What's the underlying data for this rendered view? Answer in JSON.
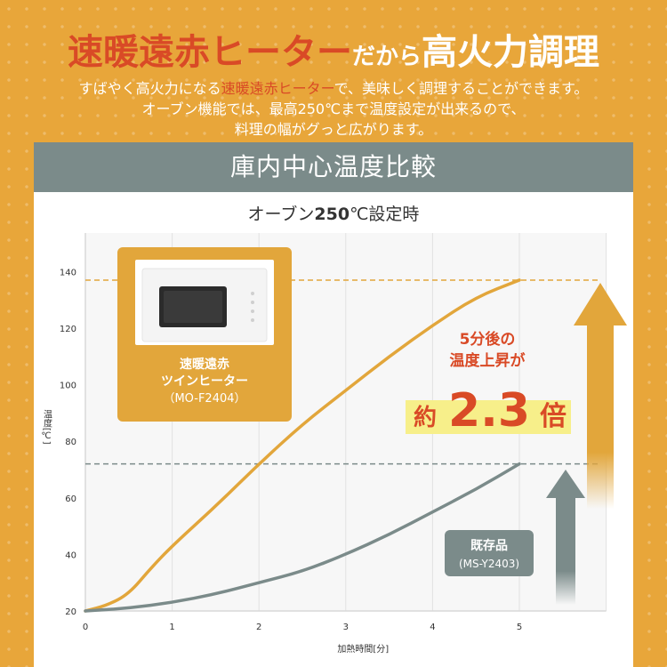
{
  "headline": {
    "red": "速暖遠赤ヒーター",
    "small": "だから",
    "big": "高火力調理"
  },
  "subtext": {
    "line1_pre": "すばやく高火力になる",
    "line1_accent": "速暖遠赤ヒーター",
    "line1_post": "で、美味しく調理することができます。",
    "line2": "オーブン機能では、最高250℃まで温度設定が出来るので、",
    "line3": "料理の幅がグっと広がります。"
  },
  "banner_title": "庫内中心温度比較",
  "chart_subtitle": {
    "pre": "オーブン",
    "num": "250",
    "post": "℃設定時"
  },
  "product_new": {
    "line1": "速暖遠赤",
    "line2": "ツインヒーター",
    "model": "（MO-F2404）"
  },
  "product_old": {
    "name": "既存品",
    "model": "(MS-Y2403)"
  },
  "callout": {
    "line1": "5分後の",
    "line2": "温度上昇が",
    "prefix": "約",
    "value": "2.3",
    "suffix": "倍"
  },
  "colors": {
    "new": "#e2a63b",
    "old": "#7b8b8a",
    "accent_red": "#d94a26",
    "highlight": "#f7ef8a"
  },
  "chart_data": {
    "type": "line",
    "xlabel": "加熱時間[分]",
    "ylabel": "温度[℃]",
    "xlim": [
      0,
      6
    ],
    "ylim": [
      20,
      150
    ],
    "x_ticks": [
      0,
      1,
      2,
      3,
      4,
      5
    ],
    "y_ticks": [
      20,
      40,
      60,
      80,
      100,
      120,
      140
    ],
    "series": [
      {
        "name": "速暖遠赤ツインヒーター",
        "color": "#e2a63b",
        "x": [
          0,
          0.25,
          0.5,
          0.75,
          1,
          1.5,
          2,
          2.5,
          3,
          3.5,
          4,
          4.5,
          5
        ],
        "y": [
          20,
          22,
          26,
          35,
          43,
          57,
          72,
          86,
          98,
          110,
          121,
          131,
          137
        ]
      },
      {
        "name": "既存品",
        "color": "#7b8b8a",
        "x": [
          0,
          0.5,
          1,
          1.5,
          2,
          2.5,
          3,
          3.5,
          4,
          4.5,
          5
        ],
        "y": [
          20,
          21,
          23,
          26,
          30,
          34,
          40,
          47,
          55,
          63,
          72
        ]
      }
    ],
    "reference_lines": [
      137,
      72
    ]
  }
}
